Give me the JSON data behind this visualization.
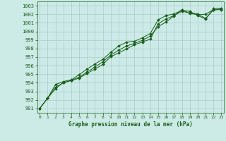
{
  "xlabel": "Graphe pression niveau de la mer (hPa)",
  "bg_color": "#cceae6",
  "grid_color": "#aacccc",
  "line_color": "#1a5f1a",
  "marker_color": "#1a5f1a",
  "ylim": [
    990.5,
    1003.5
  ],
  "xlim": [
    -0.3,
    23.3
  ],
  "yticks": [
    991,
    992,
    993,
    994,
    995,
    996,
    997,
    998,
    999,
    1000,
    1001,
    1002,
    1003
  ],
  "xticks": [
    0,
    1,
    2,
    3,
    4,
    5,
    6,
    7,
    8,
    9,
    10,
    11,
    12,
    13,
    14,
    15,
    16,
    17,
    18,
    19,
    20,
    21,
    22,
    23
  ],
  "line1": [
    991.0,
    992.2,
    993.3,
    994.05,
    994.25,
    994.55,
    995.1,
    995.6,
    996.15,
    997.05,
    997.5,
    997.95,
    998.45,
    998.75,
    999.1,
    1000.9,
    1001.45,
    1001.85,
    1002.35,
    1002.15,
    1002.05,
    1001.5,
    1002.5,
    1002.55
  ],
  "line2": [
    991.0,
    992.2,
    993.8,
    994.15,
    994.35,
    994.95,
    995.6,
    996.2,
    996.75,
    997.55,
    998.3,
    998.75,
    998.85,
    999.25,
    999.75,
    1001.35,
    1001.85,
    1002.05,
    1002.45,
    1002.35,
    1001.85,
    1001.45,
    1002.65,
    1002.7
  ],
  "line3": [
    991.0,
    992.2,
    993.5,
    994.0,
    994.3,
    994.65,
    995.25,
    995.85,
    996.45,
    997.25,
    997.8,
    998.3,
    998.6,
    998.95,
    999.45,
    1000.55,
    1001.1,
    1001.8,
    1002.55,
    1002.1,
    1001.95,
    1002.0,
    1002.55,
    1002.62
  ]
}
